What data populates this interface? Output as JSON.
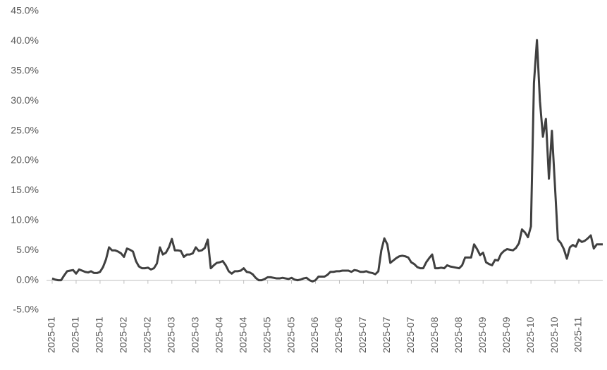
{
  "chart_data": {
    "type": "line",
    "color": "#404040",
    "categories": [
      "2025-01",
      null,
      null,
      null,
      null,
      null,
      null,
      null,
      "2025-01",
      null,
      null,
      null,
      null,
      null,
      null,
      null,
      "2025-01",
      null,
      null,
      null,
      null,
      null,
      null,
      null,
      "2025-02",
      null,
      null,
      null,
      null,
      null,
      null,
      null,
      "2025-02",
      null,
      null,
      null,
      null,
      null,
      null,
      null,
      "2025-03",
      null,
      null,
      null,
      null,
      null,
      null,
      null,
      "2025-03",
      null,
      null,
      null,
      null,
      null,
      null,
      null,
      "2025-04",
      null,
      null,
      null,
      null,
      null,
      null,
      null,
      "2025-04",
      null,
      null,
      null,
      null,
      null,
      null,
      null,
      "2025-05",
      null,
      null,
      null,
      null,
      null,
      null,
      null,
      "2025-05",
      null,
      null,
      null,
      null,
      null,
      null,
      null,
      "2025-06",
      null,
      null,
      null,
      null,
      null,
      null,
      null,
      "2025-06",
      null,
      null,
      null,
      null,
      null,
      null,
      null,
      "2025-07",
      null,
      null,
      null,
      null,
      null,
      null,
      null,
      "2025-07",
      null,
      null,
      null,
      null,
      null,
      null,
      null,
      "2025-07",
      null,
      null,
      null,
      null,
      null,
      null,
      null,
      "2025-08",
      null,
      null,
      null,
      null,
      null,
      null,
      null,
      "2025-08",
      null,
      null,
      null,
      null,
      null,
      null,
      null,
      "2025-09",
      null,
      null,
      null,
      null,
      null,
      null,
      null,
      "2025-09",
      null,
      null,
      null,
      null,
      null,
      null,
      null,
      "2025-10",
      null,
      null,
      null,
      null,
      null,
      null,
      null,
      "2025-10",
      null,
      null,
      null,
      null,
      null,
      null,
      null,
      "2025-11",
      null,
      null,
      null,
      null,
      null,
      null,
      null,
      null
    ],
    "values": [
      0.3,
      0.1,
      0.0,
      0.0,
      0.8,
      1.5,
      1.6,
      1.7,
      1.1,
      1.8,
      1.6,
      1.4,
      1.3,
      1.5,
      1.2,
      1.2,
      1.4,
      2.2,
      3.5,
      5.5,
      5.0,
      5.0,
      4.8,
      4.5,
      3.9,
      5.3,
      5.1,
      4.8,
      3.2,
      2.3,
      2.0,
      2.0,
      2.1,
      1.8,
      2.0,
      2.8,
      5.5,
      4.3,
      4.6,
      5.5,
      6.9,
      5.0,
      5.0,
      4.9,
      3.9,
      4.3,
      4.3,
      4.5,
      5.5,
      4.9,
      5.0,
      5.4,
      6.8,
      2.0,
      2.5,
      2.9,
      3.0,
      3.2,
      2.5,
      1.5,
      1.1,
      1.5,
      1.5,
      1.6,
      2.0,
      1.4,
      1.3,
      1.0,
      0.4,
      0.0,
      0.0,
      0.2,
      0.5,
      0.5,
      0.4,
      0.3,
      0.3,
      0.4,
      0.3,
      0.2,
      0.4,
      0.1,
      0.0,
      0.1,
      0.3,
      0.4,
      0.0,
      -0.2,
      0.0,
      0.6,
      0.6,
      0.6,
      0.9,
      1.4,
      1.4,
      1.5,
      1.5,
      1.6,
      1.6,
      1.6,
      1.4,
      1.7,
      1.6,
      1.4,
      1.4,
      1.5,
      1.3,
      1.2,
      1.0,
      1.5,
      5.0,
      7.0,
      6.0,
      2.9,
      3.3,
      3.7,
      4.0,
      4.1,
      4.0,
      3.8,
      3.0,
      2.7,
      2.2,
      2.0,
      2.0,
      3.0,
      3.7,
      4.3,
      2.0,
      2.0,
      2.1,
      2.0,
      2.5,
      2.3,
      2.2,
      2.1,
      2.0,
      2.5,
      3.8,
      3.8,
      3.8,
      6.0,
      5.2,
      4.2,
      4.6,
      3.0,
      2.7,
      2.5,
      3.4,
      3.3,
      4.4,
      4.9,
      5.2,
      5.1,
      5.0,
      5.4,
      6.2,
      8.5,
      8.0,
      7.2,
      9.0,
      33.0,
      40.2,
      30.0,
      24.0,
      27.0,
      17.0,
      25.0,
      16.0,
      6.8,
      6.2,
      5.2,
      3.6,
      5.5,
      5.9,
      5.6,
      6.8,
      6.4,
      6.6,
      7.0,
      7.5,
      5.3,
      6.0,
      6.0,
      6.0
    ],
    "ylim": [
      -5,
      45
    ],
    "yticks": [
      {
        "value": -5,
        "label": "-5.0%"
      },
      {
        "value": 0,
        "label": "0.0%"
      },
      {
        "value": 5,
        "label": "5.0%"
      },
      {
        "value": 10,
        "label": "10.0%"
      },
      {
        "value": 15,
        "label": "15.0%"
      },
      {
        "value": 20,
        "label": "20.0%"
      },
      {
        "value": 25,
        "label": "25.0%"
      },
      {
        "value": 30,
        "label": "30.0%"
      },
      {
        "value": 35,
        "label": "35.0%"
      },
      {
        "value": 40,
        "label": "40.0%"
      },
      {
        "value": 45,
        "label": "45.0%"
      }
    ],
    "grid": false
  }
}
